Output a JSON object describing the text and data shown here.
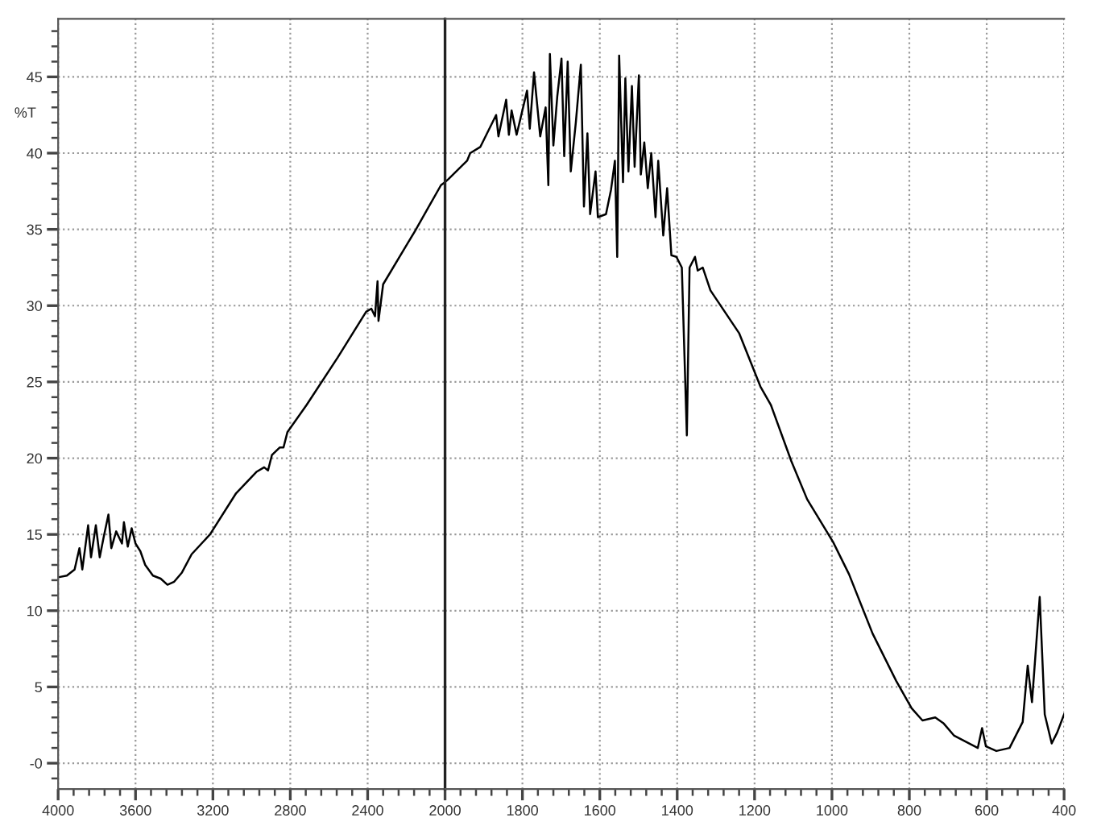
{
  "chart_data": [
    {
      "type": "line",
      "ylabel": "%T",
      "x": [
        3995,
        3955,
        3915,
        3890,
        3875,
        3845,
        3830,
        3805,
        3785,
        3765,
        3740,
        3725,
        3700,
        3670,
        3660,
        3640,
        3620,
        3600,
        3575,
        3550,
        3510,
        3470,
        3435,
        3400,
        3360,
        3310,
        3215,
        3080,
        2975,
        2935,
        2915,
        2895,
        2855,
        2835,
        2815,
        2715,
        2555,
        2408,
        2381,
        2362,
        2349,
        2344,
        2320,
        2155,
        2021,
        2000
      ],
      "values": [
        12.2,
        12.3,
        12.7,
        14.1,
        12.7,
        15.6,
        13.5,
        15.6,
        13.5,
        14.8,
        16.3,
        14.1,
        15.2,
        14.4,
        15.8,
        14.2,
        15.4,
        14.4,
        13.9,
        13.0,
        12.3,
        12.1,
        11.7,
        11.9,
        12.5,
        13.7,
        15.0,
        17.7,
        19.1,
        19.4,
        19.2,
        20.2,
        20.7,
        20.7,
        21.7,
        23.5,
        26.6,
        29.6,
        29.8,
        29.3,
        31.6,
        29.0,
        31.4,
        34.9,
        37.9,
        38.1
      ],
      "color": "#000000",
      "xlim": [
        4000,
        2000
      ],
      "xticks": [
        4000,
        3600,
        3200,
        2800,
        2400
      ],
      "ylim": [
        -1.7,
        48.8
      ],
      "yticks": [
        {
          "value": 0,
          "label": "-0"
        },
        5,
        10,
        15,
        20,
        25,
        30,
        35,
        40,
        45
      ],
      "grid": true
    },
    {
      "type": "line",
      "x": [
        2000,
        1991,
        1943,
        1935,
        1909,
        1868,
        1862,
        1842,
        1835,
        1828,
        1815,
        1788,
        1781,
        1770,
        1754,
        1740,
        1733,
        1729,
        1720,
        1710,
        1699,
        1692,
        1683,
        1675,
        1662,
        1649,
        1641,
        1632,
        1625,
        1611,
        1605,
        1584,
        1571,
        1561,
        1555,
        1550,
        1540,
        1534,
        1526,
        1517,
        1510,
        1499,
        1494,
        1485,
        1476,
        1467,
        1456,
        1449,
        1436,
        1426,
        1415,
        1402,
        1388,
        1375,
        1368,
        1354,
        1347,
        1334,
        1314,
        1240,
        1185,
        1158,
        1105,
        1064,
        997,
        956,
        895,
        834,
        794,
        766,
        733,
        711,
        684,
        623,
        612,
        602,
        575,
        541,
        507,
        494,
        483,
        463,
        450,
        432,
        418,
        400
      ],
      "values": [
        38.1,
        38.3,
        39.5,
        40.0,
        40.4,
        42.5,
        41.1,
        43.5,
        41.2,
        42.8,
        41.2,
        44.1,
        41.6,
        45.3,
        41.1,
        43.0,
        37.9,
        46.5,
        40.5,
        43.7,
        46.2,
        39.8,
        46.0,
        38.8,
        42.0,
        45.8,
        36.5,
        41.3,
        36.0,
        38.8,
        35.8,
        36.0,
        37.6,
        39.5,
        33.2,
        46.4,
        38.1,
        44.9,
        38.8,
        44.4,
        39.1,
        45.1,
        38.6,
        40.7,
        37.7,
        40.0,
        35.8,
        39.5,
        34.6,
        37.7,
        33.3,
        33.2,
        32.5,
        21.5,
        32.5,
        33.2,
        32.3,
        32.5,
        31.0,
        28.2,
        24.7,
        23.5,
        19.8,
        17.3,
        14.5,
        12.4,
        8.5,
        5.4,
        3.6,
        2.8,
        3.0,
        2.6,
        1.8,
        1.0,
        2.3,
        1.1,
        0.8,
        1.0,
        2.7,
        6.4,
        4.0,
        10.9,
        3.2,
        1.3,
        2.0,
        3.2
      ],
      "color": "#000000",
      "xlim": [
        2000,
        400
      ],
      "xticks": [
        2000,
        1800,
        1600,
        1400,
        1200,
        1000,
        800,
        600,
        400
      ],
      "ylim": [
        -1.7,
        48.8
      ],
      "yticks": [
        0,
        5,
        10,
        15,
        20,
        25,
        30,
        35,
        40,
        45
      ],
      "tick_labels": "x",
      "grid": true
    }
  ]
}
